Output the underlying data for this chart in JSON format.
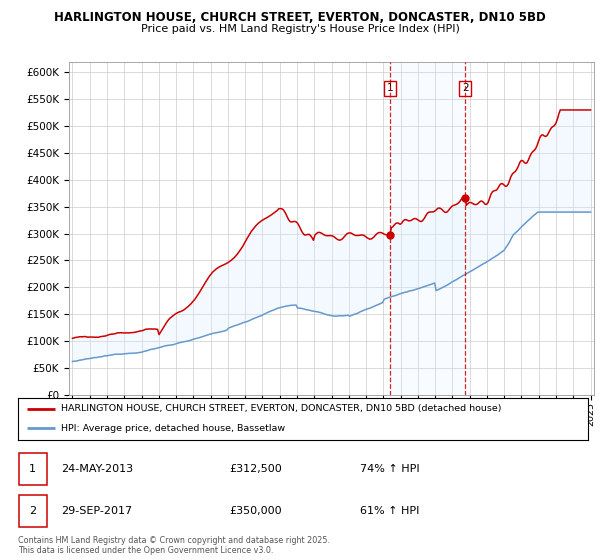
{
  "title1": "HARLINGTON HOUSE, CHURCH STREET, EVERTON, DONCASTER, DN10 5BD",
  "title2": "Price paid vs. HM Land Registry's House Price Index (HPI)",
  "legend_line1": "HARLINGTON HOUSE, CHURCH STREET, EVERTON, DONCASTER, DN10 5BD (detached house)",
  "legend_line2": "HPI: Average price, detached house, Bassetlaw",
  "marker1_date": "24-MAY-2013",
  "marker1_price": "£312,500",
  "marker1_pct": "74% ↑ HPI",
  "marker2_date": "29-SEP-2017",
  "marker2_price": "£350,000",
  "marker2_pct": "61% ↑ HPI",
  "footer": "Contains HM Land Registry data © Crown copyright and database right 2025.\nThis data is licensed under the Open Government Licence v3.0.",
  "red_color": "#cc0000",
  "blue_color": "#6699cc",
  "shade_color": "#ddeeff",
  "grid_color": "#cccccc",
  "bg_color": "#f0f4ff",
  "ylim_min": 0,
  "ylim_max": 620000,
  "start_year": 1995,
  "end_year": 2025,
  "marker1_year": 2013.38,
  "marker2_year": 2017.75
}
